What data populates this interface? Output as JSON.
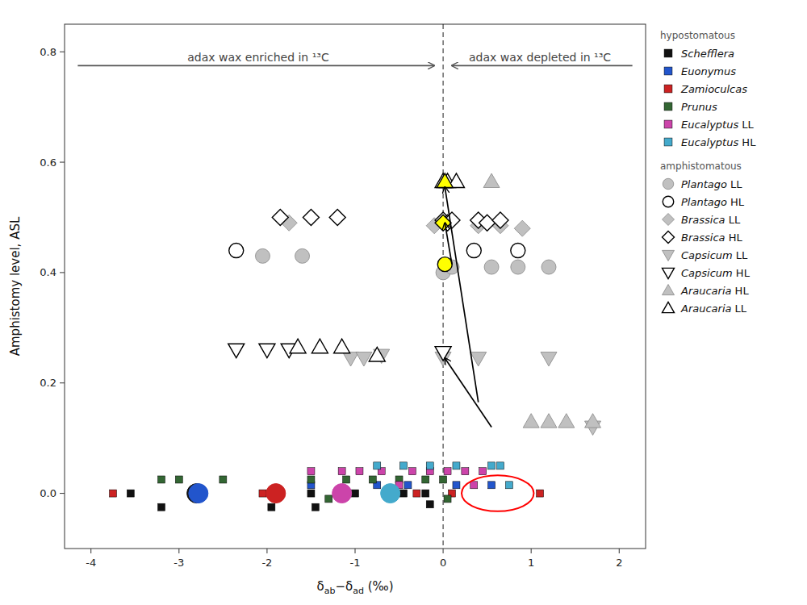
{
  "chart_data": {
    "type": "scatter",
    "xlabel": "δab−δad (‰)",
    "ylabel": "Amphistomy level, ASL",
    "xlim": [
      -4.3,
      2.3
    ],
    "ylim": [
      -0.1,
      0.85
    ],
    "xticks": [
      -4,
      -3,
      -2,
      -1,
      0,
      1,
      2
    ],
    "yticks": [
      {
        "value": 0,
        "label": "0.0"
      },
      0.2,
      0.4,
      0.6,
      0.8
    ],
    "grid": false,
    "legend": "right",
    "series": [
      {
        "name": "Schefflera",
        "group": "hypostomatous",
        "color": "#111111",
        "marker": "square",
        "x": [
          -3.55,
          -3.2,
          -1.95,
          -1.95,
          -1.5,
          -1.45,
          -1.0,
          -0.65,
          -0.45,
          -0.2,
          -0.15
        ],
        "values": [
          0.0,
          -0.025,
          0.0,
          -0.025,
          0.0,
          -0.025,
          0.0,
          0.0,
          0.0,
          0.0,
          -0.02
        ]
      },
      {
        "name": "Euonymus",
        "group": "hypostomatous",
        "color": "#2255cc",
        "marker": "square",
        "x": [
          -1.5,
          -0.75,
          -0.4,
          0.15,
          0.55
        ],
        "values": [
          0.015,
          0.015,
          0.015,
          0.015,
          0.015
        ]
      },
      {
        "name": "Zamioculcas",
        "group": "hypostomatous",
        "color": "#cc2222",
        "marker": "square",
        "x": [
          -3.75,
          -2.05,
          -0.3,
          0.1,
          1.1
        ],
        "values": [
          0.0,
          0.0,
          0.0,
          0.0,
          0.0
        ]
      },
      {
        "name": "Prunus",
        "group": "hypostomatous",
        "color": "#336633",
        "marker": "square",
        "x": [
          -3.2,
          -3.0,
          -2.5,
          -1.5,
          -1.3,
          -1.1,
          -0.8,
          -0.5,
          -0.2,
          0.0,
          0.05
        ],
        "values": [
          0.025,
          0.025,
          0.025,
          0.025,
          -0.01,
          0.025,
          0.025,
          0.025,
          0.025,
          0.025,
          -0.01
        ]
      },
      {
        "name": "Eucalyptus LL",
        "group": "hypostomatous",
        "color": "#cc44aa",
        "marker": "square",
        "x": [
          -1.5,
          -1.15,
          -0.95,
          -0.7,
          -0.5,
          -0.35,
          -0.15,
          0.05,
          0.25,
          0.35,
          0.45
        ],
        "values": [
          0.04,
          0.04,
          0.04,
          0.04,
          0.015,
          0.04,
          0.04,
          0.04,
          0.04,
          0.015,
          0.04
        ]
      },
      {
        "name": "Eucalyptus HL",
        "group": "hypostomatous",
        "color": "#44aacc",
        "marker": "square",
        "x": [
          -0.75,
          -0.45,
          -0.15,
          0.15,
          0.55,
          0.65,
          0.75
        ],
        "values": [
          0.05,
          0.05,
          0.05,
          0.05,
          0.05,
          0.05,
          0.015
        ]
      },
      {
        "marker": "disc",
        "colors": [
          "#111111",
          "#2255cc",
          "#cc2222",
          "#cc44aa",
          "#44aacc"
        ],
        "x": [
          -2.8,
          -2.78,
          -1.9,
          -1.15,
          -0.6
        ],
        "values": [
          0.0,
          0.0,
          0.0,
          0.0,
          0.0
        ]
      },
      {
        "name": "Plantago LL",
        "group": "amphistomatous",
        "color": "#c0c0c0",
        "marker": "circle",
        "x": [
          -2.05,
          -1.6,
          0.0,
          0.1,
          0.55,
          0.85,
          1.2
        ],
        "values": [
          0.43,
          0.43,
          0.4,
          0.41,
          0.41,
          0.41,
          0.41
        ]
      },
      {
        "name": "Plantago HL",
        "group": "amphistomatous",
        "color": "white",
        "marker": "circle",
        "x": [
          -2.35,
          0.35,
          0.85
        ],
        "values": [
          0.44,
          0.44,
          0.44
        ]
      },
      {
        "name": "Brassica LL",
        "group": "amphistomatous",
        "color": "#c0c0c0",
        "marker": "diamond",
        "x": [
          -1.75,
          -0.1,
          0.05,
          0.4,
          0.65,
          0.9
        ],
        "values": [
          0.49,
          0.485,
          0.49,
          0.485,
          0.485,
          0.48
        ]
      },
      {
        "name": "Brassica HL",
        "group": "amphistomatous",
        "color": "white",
        "marker": "diamond",
        "x": [
          -1.85,
          -1.5,
          -1.2,
          0.0,
          0.05,
          0.1,
          0.4,
          0.5,
          0.65
        ],
        "values": [
          0.5,
          0.5,
          0.5,
          0.495,
          0.49,
          0.495,
          0.495,
          0.49,
          0.495
        ]
      },
      {
        "name": "Capsicum LL",
        "group": "amphistomatous",
        "color": "#c0c0c0",
        "marker": "triangle-down",
        "x": [
          -1.05,
          -0.9,
          -0.7,
          0.0,
          0.4,
          1.2,
          1.7
        ],
        "values": [
          0.245,
          0.245,
          0.25,
          0.245,
          0.245,
          0.245,
          0.12
        ]
      },
      {
        "name": "Capsicum HL",
        "group": "amphistomatous",
        "color": "white",
        "marker": "triangle-down",
        "x": [
          -2.35,
          -2.0,
          -1.75,
          0.0
        ],
        "values": [
          0.26,
          0.26,
          0.26,
          0.255
        ]
      },
      {
        "name": "Araucaria HL",
        "group": "amphistomatous",
        "color": "#c0c0c0",
        "marker": "triangle-up",
        "x": [
          0.05,
          0.15,
          0.55,
          1.0,
          1.2,
          1.4,
          1.7
        ],
        "values": [
          0.565,
          0.565,
          0.565,
          0.13,
          0.13,
          0.13,
          0.13
        ]
      },
      {
        "name": "Araucaria LL",
        "group": "amphistomatous",
        "color": "white",
        "marker": "triangle-up",
        "x": [
          -1.65,
          -1.4,
          -1.15,
          -0.75,
          0.0,
          0.05,
          0.15
        ],
        "values": [
          0.265,
          0.265,
          0.265,
          0.25,
          0.565,
          0.565,
          0.565
        ]
      },
      {
        "color": "yellow",
        "marker": "diamond",
        "x": [
          0.0
        ],
        "values": [
          0.49
        ]
      },
      {
        "color": "yellow",
        "marker": "circle",
        "x": [
          0.02
        ],
        "values": [
          0.415
        ]
      },
      {
        "color": "yellow",
        "marker": "triangle-up",
        "x": [
          0.02
        ],
        "values": [
          0.565
        ]
      }
    ],
    "annotations": [
      {
        "type": "vline",
        "x": 0,
        "color": "black"
      },
      {
        "type": "arrow",
        "tail": [
          0.4,
          0.165
        ],
        "head": [
          0.02,
          0.555
        ],
        "color": "black"
      },
      {
        "type": "arrow",
        "tail": [
          0.1,
          0.415
        ],
        "head": [
          0.02,
          0.49
        ],
        "color": "black"
      },
      {
        "type": "arrow",
        "tail": [
          0.55,
          0.12
        ],
        "head": [
          0.02,
          0.245
        ],
        "color": "black"
      },
      {
        "type": "ellipse",
        "center": [
          0.62,
          0.0
        ],
        "width": 0.82,
        "height": 0.065,
        "color": "red"
      },
      {
        "type": "arrow",
        "tail": [
          -4.15,
          0.775
        ],
        "head": [
          -0.1,
          0.775
        ],
        "color": "#555555"
      },
      {
        "type": "text",
        "text": "adax wax enriched in ¹³C",
        "x": -2.1,
        "y": 0.78,
        "color": "#444444"
      },
      {
        "type": "arrow",
        "tail": [
          2.15,
          0.775
        ],
        "head": [
          0.1,
          0.775
        ],
        "color": "#555555"
      },
      {
        "type": "text",
        "text": "adax wax depleted in ¹³C",
        "x": 1.1,
        "y": 0.78,
        "color": "#444444"
      }
    ]
  }
}
